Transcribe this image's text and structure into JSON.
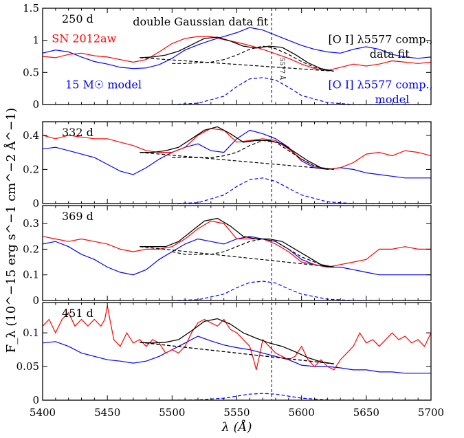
{
  "chart_data": {
    "type": "line",
    "x_range": [
      5400,
      5700
    ],
    "x_ticks": [
      "5400",
      "5450",
      "5500",
      "5550",
      "5600",
      "5650",
      "5700"
    ],
    "xlabel": "λ (Å)",
    "ylabel": "F_λ (10^−15 erg s^−1 cm^−2 Å^−1)",
    "vline_x": 5577,
    "vline_label": "5577 Å",
    "colors": {
      "data": "#ff0000",
      "model": "#0000ff",
      "fit": "#000000"
    },
    "panels": [
      {
        "epoch": "250 d",
        "ylim": [
          0,
          1.5
        ],
        "yticks": [
          "0",
          "0.5",
          "1",
          "1.5"
        ],
        "ytick_vals": [
          0,
          0.5,
          1,
          1.5
        ],
        "annotations": [
          {
            "text": "double Gaussian data fit",
            "color": "#000000",
            "x": 5522,
            "y": 1.23
          },
          {
            "text": "SN 2012aw",
            "color": "#ff0000",
            "x": 5432,
            "y": 0.97
          },
          {
            "text": "[O I] λ5577 comp.,",
            "color": "#000000",
            "x": 5661,
            "y": 0.96
          },
          {
            "text": "data fit",
            "color": "#000000",
            "x": 5668,
            "y": 0.73
          },
          {
            "text": "15 M☉ model",
            "color": "#0000ff",
            "x": 5447,
            "y": 0.25
          },
          {
            "text": "[O I] λ5577 comp.,",
            "color": "#0000ff",
            "x": 5661,
            "y": 0.25
          },
          {
            "text": "model",
            "color": "#0000ff",
            "x": 5670,
            "y": 0.02
          }
        ],
        "data_x": [
          5400,
          5410,
          5420,
          5430,
          5440,
          5450,
          5460,
          5470,
          5480,
          5490,
          5500,
          5510,
          5520,
          5530,
          5540,
          5550,
          5560,
          5570,
          5580,
          5590,
          5600,
          5610,
          5620,
          5630,
          5640,
          5650,
          5660,
          5670,
          5680,
          5690,
          5700
        ],
        "data_y": [
          0.75,
          0.73,
          0.78,
          0.8,
          0.76,
          0.74,
          0.7,
          0.66,
          0.7,
          0.82,
          0.95,
          1.03,
          1.06,
          1.06,
          1.01,
          0.97,
          0.92,
          0.86,
          0.79,
          0.72,
          0.63,
          0.56,
          0.53,
          0.58,
          0.63,
          0.6,
          0.63,
          0.68,
          0.66,
          0.64,
          0.66
        ],
        "model_x": [
          5400,
          5410,
          5420,
          5430,
          5440,
          5450,
          5460,
          5470,
          5480,
          5490,
          5500,
          5510,
          5520,
          5530,
          5540,
          5550,
          5560,
          5570,
          5580,
          5590,
          5600,
          5610,
          5620,
          5630,
          5640,
          5650,
          5660,
          5670,
          5680,
          5690,
          5700
        ],
        "model_y": [
          0.8,
          0.85,
          0.82,
          0.74,
          0.67,
          0.63,
          0.58,
          0.56,
          0.57,
          0.62,
          0.72,
          0.85,
          0.93,
          1.0,
          1.06,
          1.12,
          1.2,
          1.16,
          1.08,
          1.0,
          0.92,
          0.86,
          0.82,
          0.8,
          0.86,
          0.9,
          0.86,
          0.78,
          0.74,
          0.72,
          0.74
        ],
        "fit_x": [
          5475,
          5485,
          5495,
          5505,
          5515,
          5525,
          5535,
          5545,
          5555,
          5565,
          5575,
          5585,
          5595,
          5605,
          5615,
          5625
        ],
        "fit_y": [
          0.73,
          0.74,
          0.77,
          0.83,
          0.93,
          1.03,
          1.05,
          0.99,
          0.91,
          0.88,
          0.91,
          0.89,
          0.78,
          0.65,
          0.56,
          0.52
        ],
        "comp_x": [
          5500,
          5510,
          5520,
          5530,
          5540,
          5550,
          5560,
          5570,
          5580,
          5590,
          5600,
          5610,
          5620
        ],
        "comp_y": [
          0.64,
          0.64,
          0.65,
          0.66,
          0.7,
          0.77,
          0.86,
          0.91,
          0.87,
          0.78,
          0.67,
          0.58,
          0.53
        ],
        "cont_x": [
          5475,
          5625
        ],
        "cont_y": [
          0.73,
          0.52
        ],
        "mcomp_x": [
          5500,
          5520,
          5540,
          5550,
          5560,
          5570,
          5580,
          5590,
          5600,
          5620,
          5640,
          5700
        ],
        "mcomp_y": [
          0,
          0.02,
          0.13,
          0.28,
          0.4,
          0.42,
          0.38,
          0.27,
          0.14,
          0.03,
          0,
          0
        ]
      },
      {
        "epoch": "332 d",
        "ylim": [
          0,
          0.48
        ],
        "yticks": [
          "0",
          "0.2",
          "0.4"
        ],
        "ytick_vals": [
          0,
          0.2,
          0.4
        ],
        "annotations": [],
        "data_x": [
          5400,
          5410,
          5420,
          5430,
          5440,
          5450,
          5460,
          5470,
          5480,
          5490,
          5500,
          5510,
          5520,
          5530,
          5540,
          5550,
          5560,
          5570,
          5580,
          5590,
          5600,
          5610,
          5620,
          5630,
          5640,
          5650,
          5660,
          5670,
          5680,
          5690,
          5700
        ],
        "data_y": [
          0.4,
          0.38,
          0.4,
          0.39,
          0.38,
          0.38,
          0.36,
          0.34,
          0.31,
          0.3,
          0.3,
          0.33,
          0.4,
          0.44,
          0.43,
          0.36,
          0.37,
          0.38,
          0.37,
          0.32,
          0.26,
          0.22,
          0.2,
          0.21,
          0.24,
          0.29,
          0.3,
          0.28,
          0.31,
          0.3,
          0.28
        ],
        "model_x": [
          5400,
          5410,
          5420,
          5430,
          5440,
          5450,
          5460,
          5470,
          5480,
          5490,
          5500,
          5510,
          5520,
          5530,
          5540,
          5550,
          5560,
          5570,
          5580,
          5590,
          5600,
          5610,
          5620,
          5630,
          5640,
          5650,
          5660,
          5670,
          5680,
          5690,
          5700
        ],
        "model_y": [
          0.32,
          0.33,
          0.31,
          0.29,
          0.27,
          0.23,
          0.19,
          0.17,
          0.21,
          0.26,
          0.3,
          0.33,
          0.35,
          0.31,
          0.3,
          0.38,
          0.43,
          0.41,
          0.38,
          0.33,
          0.25,
          0.21,
          0.2,
          0.21,
          0.2,
          0.18,
          0.17,
          0.16,
          0.15,
          0.15,
          0.15
        ],
        "fit_x": [
          5475,
          5485,
          5495,
          5505,
          5515,
          5525,
          5535,
          5545,
          5555,
          5565,
          5575,
          5585,
          5595,
          5605,
          5615,
          5625
        ],
        "fit_y": [
          0.3,
          0.3,
          0.31,
          0.33,
          0.38,
          0.43,
          0.45,
          0.41,
          0.36,
          0.37,
          0.37,
          0.35,
          0.3,
          0.25,
          0.21,
          0.2
        ],
        "comp_x": [
          5500,
          5510,
          5520,
          5530,
          5540,
          5550,
          5560,
          5570,
          5580,
          5590,
          5600,
          5610,
          5620
        ],
        "comp_y": [
          0.27,
          0.27,
          0.27,
          0.27,
          0.28,
          0.3,
          0.34,
          0.37,
          0.36,
          0.31,
          0.26,
          0.22,
          0.2
        ],
        "cont_x": [
          5475,
          5625
        ],
        "cont_y": [
          0.3,
          0.2
        ],
        "mcomp_x": [
          5500,
          5520,
          5540,
          5550,
          5560,
          5570,
          5580,
          5590,
          5600,
          5620,
          5640,
          5700
        ],
        "mcomp_y": [
          0,
          0.005,
          0.05,
          0.1,
          0.14,
          0.15,
          0.13,
          0.09,
          0.05,
          0.01,
          0,
          0
        ]
      },
      {
        "epoch": "369 d",
        "ylim": [
          0,
          0.37
        ],
        "yticks": [
          "0",
          "0.1",
          "0.2",
          "0.3"
        ],
        "ytick_vals": [
          0,
          0.1,
          0.2,
          0.3
        ],
        "annotations": [],
        "data_x": [
          5400,
          5410,
          5420,
          5430,
          5440,
          5450,
          5460,
          5470,
          5480,
          5490,
          5500,
          5510,
          5520,
          5530,
          5540,
          5550,
          5560,
          5570,
          5580,
          5590,
          5600,
          5610,
          5620,
          5630,
          5640,
          5650,
          5660,
          5670,
          5680,
          5690,
          5700
        ],
        "data_y": [
          0.25,
          0.24,
          0.23,
          0.24,
          0.23,
          0.22,
          0.2,
          0.19,
          0.2,
          0.2,
          0.21,
          0.24,
          0.28,
          0.31,
          0.3,
          0.24,
          0.24,
          0.24,
          0.22,
          0.19,
          0.15,
          0.14,
          0.13,
          0.14,
          0.15,
          0.16,
          0.2,
          0.2,
          0.21,
          0.2,
          0.2
        ],
        "model_x": [
          5400,
          5410,
          5420,
          5430,
          5440,
          5450,
          5460,
          5470,
          5480,
          5490,
          5500,
          5510,
          5520,
          5530,
          5540,
          5550,
          5560,
          5570,
          5580,
          5590,
          5600,
          5610,
          5620,
          5630,
          5640,
          5650,
          5660,
          5670,
          5680,
          5690,
          5700
        ],
        "model_y": [
          0.22,
          0.23,
          0.21,
          0.18,
          0.16,
          0.13,
          0.11,
          0.1,
          0.12,
          0.16,
          0.19,
          0.22,
          0.24,
          0.23,
          0.22,
          0.24,
          0.25,
          0.24,
          0.23,
          0.2,
          0.16,
          0.14,
          0.13,
          0.13,
          0.12,
          0.11,
          0.1,
          0.1,
          0.1,
          0.1,
          0.1
        ],
        "fit_x": [
          5475,
          5485,
          5495,
          5505,
          5515,
          5525,
          5535,
          5545,
          5555,
          5565,
          5575,
          5585,
          5595,
          5605,
          5615,
          5625
        ],
        "fit_y": [
          0.21,
          0.21,
          0.21,
          0.23,
          0.27,
          0.31,
          0.32,
          0.29,
          0.25,
          0.24,
          0.24,
          0.23,
          0.2,
          0.17,
          0.14,
          0.13
        ],
        "comp_x": [
          5500,
          5510,
          5520,
          5530,
          5540,
          5550,
          5560,
          5570,
          5580,
          5590,
          5600,
          5610,
          5620
        ],
        "comp_y": [
          0.19,
          0.18,
          0.18,
          0.18,
          0.19,
          0.21,
          0.23,
          0.24,
          0.23,
          0.2,
          0.17,
          0.15,
          0.13
        ],
        "cont_x": [
          5475,
          5625
        ],
        "cont_y": [
          0.21,
          0.13
        ],
        "mcomp_x": [
          5500,
          5520,
          5540,
          5550,
          5560,
          5570,
          5580,
          5590,
          5600,
          5620,
          5640,
          5700
        ],
        "mcomp_y": [
          0,
          0.003,
          0.025,
          0.05,
          0.07,
          0.075,
          0.068,
          0.045,
          0.025,
          0.005,
          0,
          0
        ]
      },
      {
        "epoch": "451 d",
        "ylim": [
          0,
          0.145
        ],
        "yticks": [
          "0",
          "0.05",
          "0.1"
        ],
        "ytick_vals": [
          0,
          0.05,
          0.1
        ],
        "annotations": [],
        "data_x": [
          5400,
          5405,
          5410,
          5415,
          5420,
          5425,
          5430,
          5435,
          5440,
          5445,
          5448,
          5450,
          5452,
          5455,
          5460,
          5465,
          5470,
          5475,
          5480,
          5485,
          5490,
          5495,
          5500,
          5505,
          5510,
          5515,
          5520,
          5525,
          5530,
          5535,
          5540,
          5545,
          5550,
          5555,
          5560,
          5563,
          5565,
          5568,
          5570,
          5575,
          5580,
          5585,
          5590,
          5595,
          5600,
          5605,
          5610,
          5615,
          5620,
          5625,
          5630,
          5635,
          5640,
          5645,
          5650,
          5655,
          5660,
          5665,
          5670,
          5675,
          5680,
          5685,
          5690,
          5695,
          5700
        ],
        "data_y": [
          0.11,
          0.12,
          0.1,
          0.12,
          0.13,
          0.11,
          0.12,
          0.11,
          0.12,
          0.11,
          0.12,
          0.14,
          0.12,
          0.09,
          0.08,
          0.1,
          0.085,
          0.09,
          0.08,
          0.09,
          0.085,
          0.07,
          0.075,
          0.07,
          0.08,
          0.1,
          0.115,
          0.12,
          0.115,
          0.11,
          0.12,
          0.105,
          0.1,
          0.09,
          0.08,
          0.06,
          0.045,
          0.07,
          0.09,
          0.08,
          0.07,
          0.065,
          0.06,
          0.065,
          0.08,
          0.06,
          0.05,
          0.06,
          0.05,
          0.045,
          0.06,
          0.07,
          0.08,
          0.1,
          0.085,
          0.09,
          0.08,
          0.09,
          0.1,
          0.09,
          0.095,
          0.085,
          0.09,
          0.08,
          0.1
        ],
        "model_x": [
          5400,
          5410,
          5420,
          5430,
          5440,
          5450,
          5460,
          5470,
          5480,
          5490,
          5500,
          5510,
          5520,
          5530,
          5540,
          5550,
          5560,
          5570,
          5580,
          5590,
          5600,
          5610,
          5620,
          5630,
          5640,
          5650,
          5660,
          5670,
          5680,
          5690,
          5700
        ],
        "model_y": [
          0.085,
          0.087,
          0.08,
          0.07,
          0.065,
          0.06,
          0.058,
          0.055,
          0.058,
          0.065,
          0.075,
          0.085,
          0.095,
          0.088,
          0.082,
          0.078,
          0.075,
          0.07,
          0.065,
          0.06,
          0.052,
          0.05,
          0.05,
          0.048,
          0.045,
          0.045,
          0.042,
          0.042,
          0.04,
          0.04,
          0.04
        ],
        "fit_x": [
          5475,
          5485,
          5495,
          5505,
          5515,
          5525,
          5535,
          5545,
          5555,
          5565,
          5575,
          5585,
          5595,
          5605,
          5615,
          5625
        ],
        "fit_y": [
          0.086,
          0.085,
          0.086,
          0.09,
          0.103,
          0.117,
          0.121,
          0.113,
          0.1,
          0.092,
          0.085,
          0.08,
          0.072,
          0.063,
          0.057,
          0.054
        ],
        "comp_x": [
          5475,
          5625
        ],
        "comp_y": [
          0.086,
          0.054
        ],
        "cont_x": [
          5475,
          5625
        ],
        "cont_y": [
          0.086,
          0.054
        ],
        "mcomp_x": [
          5500,
          5520,
          5540,
          5550,
          5560,
          5570,
          5580,
          5590,
          5600,
          5620,
          5640,
          5700
        ],
        "mcomp_y": [
          0,
          0.0005,
          0.003,
          0.006,
          0.009,
          0.01,
          0.009,
          0.006,
          0.003,
          0.0005,
          0,
          0
        ]
      }
    ]
  }
}
